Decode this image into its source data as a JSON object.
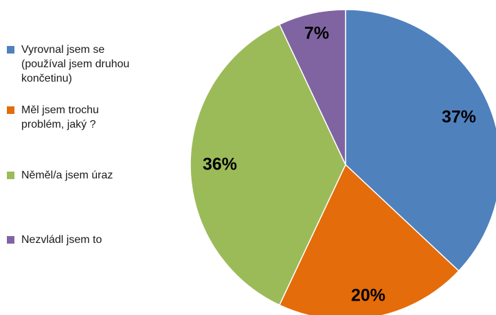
{
  "chart_data": {
    "type": "pie",
    "title": "",
    "start_angle_deg": 0,
    "direction": "clockwise",
    "slices": [
      {
        "label": "Vyrovnal jsem se\n(používal jsem druhou\nkončetinu)",
        "value": 37,
        "value_label": "37%",
        "color": "#4F81BD"
      },
      {
        "label": "Měl jsem trochu\nproblém, jaký ?",
        "value": 20,
        "value_label": "20%",
        "color": "#E46C0A"
      },
      {
        "label": "Něměl/a jsem úraz",
        "value": 36,
        "value_label": "36%",
        "color": "#9BBB59"
      },
      {
        "label": "Nezvládl jsem to",
        "value": 7,
        "value_label": "7%",
        "color": "#8064A2"
      }
    ],
    "legend": "left"
  }
}
